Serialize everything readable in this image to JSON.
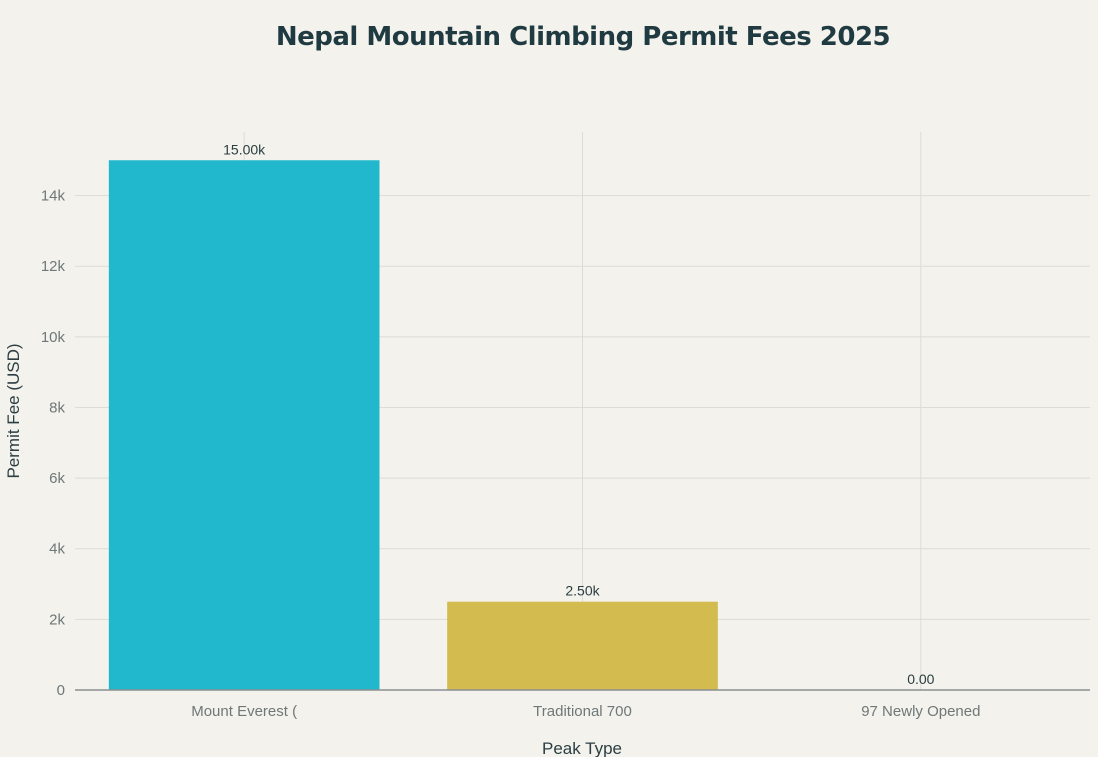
{
  "chart_data": {
    "type": "bar",
    "title": "Nepal Mountain Climbing Permit Fees 2025",
    "xlabel": "Peak Type",
    "ylabel": "Permit Fee (USD)",
    "categories": [
      "Mount Everest (",
      "Traditional 700",
      "97 Newly Opened"
    ],
    "values": [
      15000,
      2500,
      0
    ],
    "data_labels": [
      "15.00k",
      "2.50k",
      "0.00"
    ],
    "bar_colors": [
      "#21b8cd",
      "#d3bb4f",
      "#d3bb4f"
    ],
    "ylim": [
      0,
      15800
    ],
    "yticks": [
      0,
      2000,
      4000,
      6000,
      8000,
      10000,
      12000,
      14000
    ],
    "ytick_labels": [
      "0",
      "2k",
      "4k",
      "6k",
      "8k",
      "10k",
      "12k",
      "14k"
    ],
    "grid": true,
    "legend": "none"
  }
}
